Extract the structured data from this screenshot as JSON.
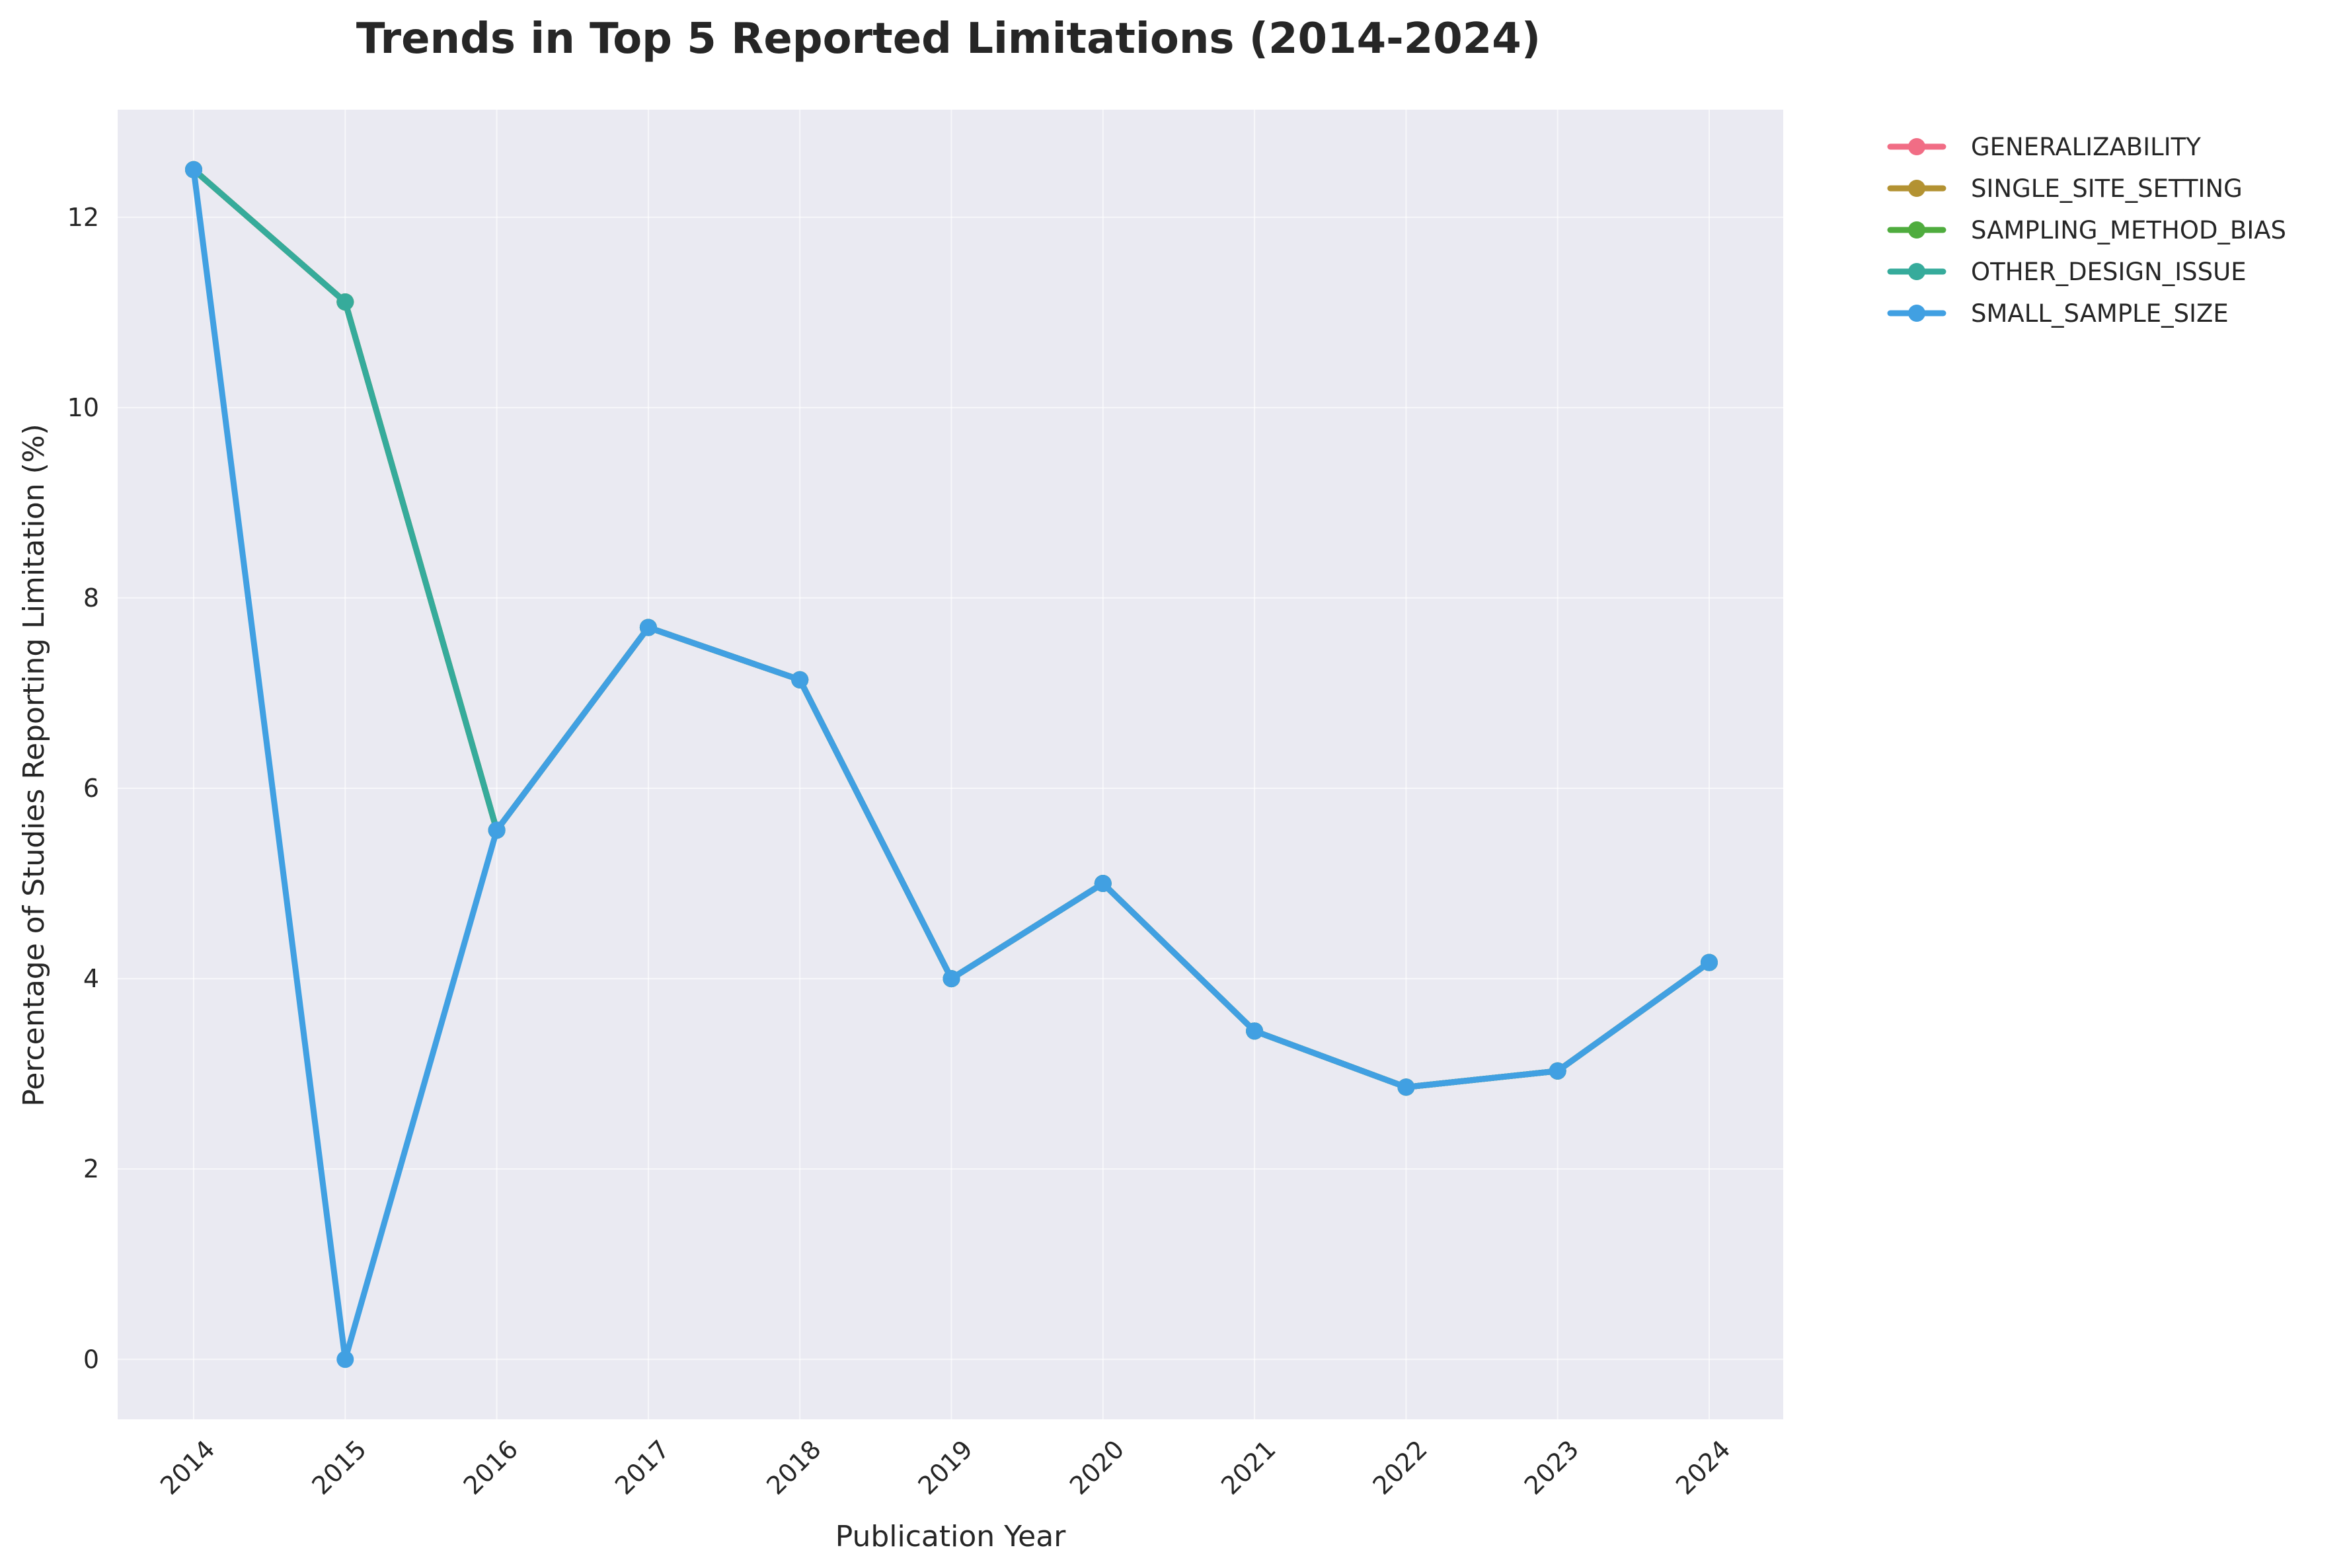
{
  "chart_data": {
    "type": "line",
    "title": "Trends in Top 5 Reported Limitations (2014-2024)",
    "xlabel": "Publication Year",
    "ylabel": "Percentage of Studies Reporting Limitation (%)",
    "categories": [
      "2014",
      "2015",
      "2016",
      "2017",
      "2018",
      "2019",
      "2020",
      "2021",
      "2022",
      "2023",
      "2024"
    ],
    "y_ticks": [
      "0",
      "2",
      "4",
      "6",
      "8",
      "10",
      "12"
    ],
    "ylim": [
      -0.63,
      13.13
    ],
    "grid": true,
    "legend_position": "outside-top-right",
    "plot_background": "#eaeaf2",
    "series": [
      {
        "name": "GENERALIZABILITY",
        "color": "#f16d85",
        "values": [
          12.5,
          11.11,
          5.56,
          7.69,
          7.14,
          4.0,
          5.0,
          3.45,
          2.86,
          3.03,
          4.17
        ]
      },
      {
        "name": "SINGLE_SITE_SETTING",
        "color": "#b39232",
        "values": [
          12.5,
          11.11,
          5.56,
          7.69,
          7.14,
          4.0,
          5.0,
          3.45,
          2.86,
          3.03,
          4.17
        ]
      },
      {
        "name": "SAMPLING_METHOD_BIAS",
        "color": "#4fac3e",
        "values": [
          12.5,
          11.11,
          5.56,
          7.69,
          7.14,
          4.0,
          5.0,
          3.45,
          2.86,
          3.03,
          4.17
        ]
      },
      {
        "name": "OTHER_DESIGN_ISSUE",
        "color": "#36ab9b",
        "values": [
          12.5,
          11.11,
          5.56,
          7.69,
          7.14,
          4.0,
          5.0,
          3.45,
          2.86,
          3.03,
          4.17
        ]
      },
      {
        "name": "SMALL_SAMPLE_SIZE",
        "color": "#41a0e2",
        "values": [
          12.5,
          0,
          5.56,
          7.69,
          7.14,
          4.0,
          5.0,
          3.45,
          2.86,
          3.03,
          4.17
        ]
      }
    ]
  }
}
